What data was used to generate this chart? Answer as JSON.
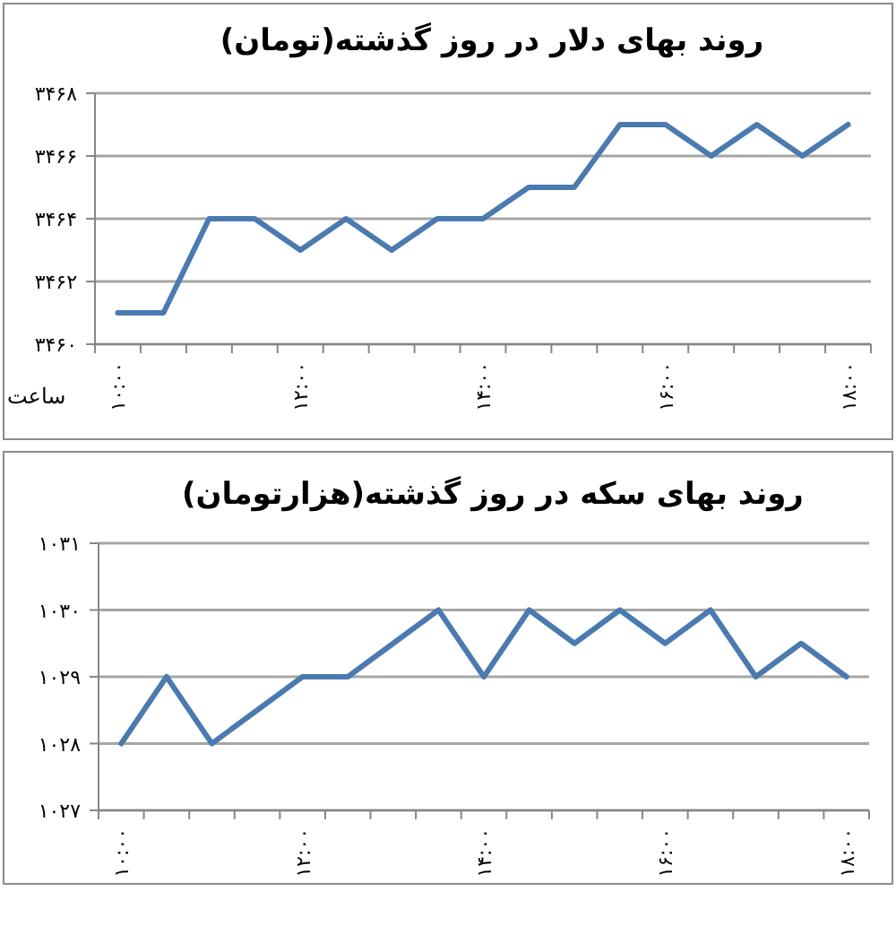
{
  "chart_data": [
    {
      "type": "line",
      "title": "روند بهای دلار در روز گذشته(تومان)",
      "xlabel": "ساعت",
      "categories": [
        "۱۰:۰۰",
        null,
        null,
        null,
        "۱۲:۰۰",
        null,
        null,
        null,
        "۱۴:۰۰",
        null,
        null,
        null,
        "۱۶:۰۰",
        null,
        null,
        null,
        "۱۸:۰۰"
      ],
      "values": [
        3461,
        3461,
        3464,
        3464,
        3463,
        3464,
        3463,
        3464,
        3464,
        3465,
        3465,
        3467,
        3467,
        3466,
        3467,
        3466,
        3467
      ],
      "color": "#4a7ab0",
      "ylim": [
        3460,
        3468
      ],
      "yticks": [
        {
          "value": 3460,
          "label": "۳۴۶۰"
        },
        {
          "value": 3462,
          "label": "۳۴۶۲"
        },
        {
          "value": 3464,
          "label": "۳۴۶۴"
        },
        {
          "value": 3466,
          "label": "۳۴۶۶"
        },
        {
          "value": 3468,
          "label": "۳۴۶۸"
        }
      ],
      "grid": "y"
    },
    {
      "type": "line",
      "title": "روند بهای سکه در روز گذشته(هزارتومان)",
      "categories": [
        "۱۰:۰۰",
        null,
        null,
        null,
        "۱۲:۰۰",
        null,
        null,
        null,
        "۱۴:۰۰",
        null,
        null,
        null,
        "۱۶:۰۰",
        null,
        null,
        null,
        "۱۸:۰۰"
      ],
      "values": [
        1028,
        1029,
        1028,
        1028.5,
        1029,
        1029,
        1029.5,
        1030,
        1029,
        1030,
        1029.5,
        1030,
        1029.5,
        1030,
        1029,
        1029.5,
        1029
      ],
      "color": "#4a7ab0",
      "ylim": [
        1027,
        1031
      ],
      "yticks": [
        {
          "value": 1027,
          "label": "۱۰۲۷"
        },
        {
          "value": 1028,
          "label": "۱۰۲۸"
        },
        {
          "value": 1029,
          "label": "۱۰۲۹"
        },
        {
          "value": 1030,
          "label": "۱۰۳۰"
        },
        {
          "value": 1031,
          "label": "۱۰۳۱"
        }
      ],
      "grid": "y"
    }
  ]
}
